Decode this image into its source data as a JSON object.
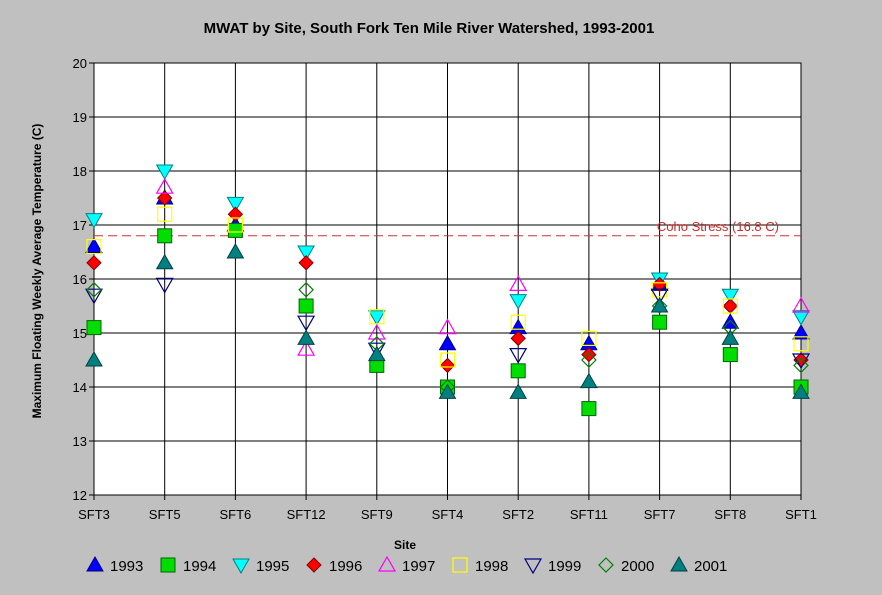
{
  "chart_data": {
    "type": "scatter",
    "title": "MWAT by Site, South Fork Ten Mile River Watershed, 1993-2001",
    "xlabel": "Site",
    "ylabel": "Maximum Floating Weekly Average Temperature (C)",
    "ylim": [
      12,
      20
    ],
    "yticks": [
      12,
      13,
      14,
      15,
      16,
      17,
      18,
      19,
      20
    ],
    "categories": [
      "SFT3",
      "SFT5",
      "SFT6",
      "SFT12",
      "SFT9",
      "SFT4",
      "SFT2",
      "SFT11",
      "SFT7",
      "SFT8",
      "SFT1"
    ],
    "grid": true,
    "legend_position": "bottom",
    "reference_line": {
      "label": "Coho Stress (16.8 C)",
      "value": 16.8,
      "color": "#cc3333"
    },
    "series": [
      {
        "name": "1993",
        "marker": "triangle-up",
        "fill": "#0000ff",
        "stroke": "#000080",
        "values": [
          16.6,
          17.5,
          17.0,
          null,
          null,
          14.8,
          15.1,
          14.8,
          15.9,
          15.2,
          15.0
        ]
      },
      {
        "name": "1994",
        "marker": "square",
        "fill": "#00dd00",
        "stroke": "#006600",
        "values": [
          15.1,
          16.8,
          16.9,
          15.5,
          14.4,
          14.0,
          14.3,
          13.6,
          15.2,
          14.6,
          14.0
        ]
      },
      {
        "name": "1995",
        "marker": "triangle-down",
        "fill": "#00ffff",
        "stroke": "#008080",
        "values": [
          17.1,
          18.0,
          17.4,
          16.5,
          15.3,
          null,
          15.6,
          null,
          16.0,
          15.7,
          15.3
        ]
      },
      {
        "name": "1996",
        "marker": "diamond",
        "fill": "#ff0000",
        "stroke": "#800000",
        "values": [
          16.3,
          17.5,
          17.2,
          16.3,
          null,
          14.4,
          14.9,
          14.6,
          15.9,
          15.5,
          14.5
        ]
      },
      {
        "name": "1997",
        "marker": "triangle-up-open",
        "fill": "none",
        "stroke": "#ff00ff",
        "values": [
          null,
          17.7,
          null,
          14.7,
          15.0,
          15.1,
          15.9,
          null,
          null,
          null,
          15.5
        ]
      },
      {
        "name": "1998",
        "marker": "square-open",
        "fill": "none",
        "stroke": "#ffff00",
        "values": [
          16.6,
          17.2,
          17.0,
          null,
          15.3,
          14.5,
          15.2,
          14.9,
          15.8,
          15.5,
          14.8
        ]
      },
      {
        "name": "1999",
        "marker": "triangle-down-open",
        "fill": "none",
        "stroke": "#000080",
        "values": [
          15.7,
          15.9,
          null,
          15.2,
          14.7,
          null,
          14.6,
          null,
          15.7,
          null,
          14.5
        ]
      },
      {
        "name": "2000",
        "marker": "diamond-open",
        "fill": "none",
        "stroke": "#008000",
        "values": [
          15.8,
          null,
          null,
          15.8,
          14.8,
          14.0,
          null,
          14.5,
          15.5,
          15.1,
          14.4
        ]
      },
      {
        "name": "2001",
        "marker": "triangle-up",
        "fill": "#008080",
        "stroke": "#004040",
        "values": [
          14.5,
          16.3,
          16.5,
          14.9,
          14.6,
          13.9,
          13.9,
          14.1,
          15.5,
          14.9,
          13.9
        ]
      }
    ]
  }
}
